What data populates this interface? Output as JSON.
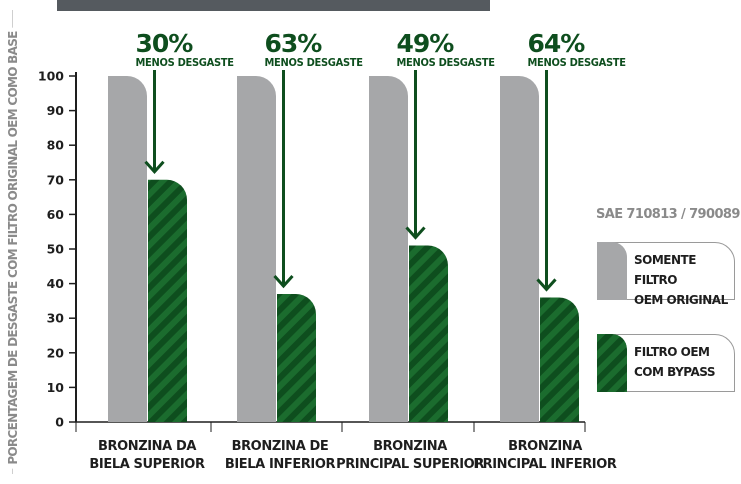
{
  "chart_data": {
    "type": "bar",
    "ylabel": "PORCENTAGEM DE DESGASTE COM FILTRO ORIGINAL OEM COMO BASE",
    "xlabel": "",
    "ylim": [
      0,
      100
    ],
    "yticks": [
      "0",
      "10",
      "20",
      "30",
      "40",
      "50",
      "60",
      "70",
      "80",
      "90",
      "100"
    ],
    "categories": [
      [
        "BRONZINA DA",
        "BIELA SUPERIOR"
      ],
      [
        "BRONZINA DE",
        "BIELA INFERIOR"
      ],
      [
        "BRONZINA",
        "PRINCIPAL SUPERIOR"
      ],
      [
        "BRONZINA",
        "PRINCIPAL INFERIOR"
      ]
    ],
    "series": [
      {
        "name": "SOMENTE FILTRO OEM ORIGINAL",
        "color": "#a6a7a9",
        "values": [
          100,
          100,
          100,
          100
        ]
      },
      {
        "name": "FILTRO OEM COM BYPASS",
        "color": "#0e4e1e",
        "stripe_color": "#1b6c2e",
        "values": [
          70,
          37,
          51,
          36
        ]
      }
    ],
    "annotations": [
      {
        "pct": "30%",
        "text": "MENOS DESGASTE"
      },
      {
        "pct": "63%",
        "text": "MENOS DESGASTE"
      },
      {
        "pct": "49%",
        "text": "MENOS DESGASTE"
      },
      {
        "pct": "64%",
        "text": "MENOS DESGASTE"
      }
    ],
    "note": "SAE 710813 / 790089",
    "legend": [
      {
        "label": "SOMENTE FILTRO\nOEM ORIGINAL",
        "color": "#a6a7a9",
        "pattern": "solid"
      },
      {
        "label": "FILTRO OEM\nCOM BYPASS",
        "color": "#0e4e1e",
        "pattern": "stripes"
      }
    ],
    "legend_position": "right",
    "grid": false
  }
}
